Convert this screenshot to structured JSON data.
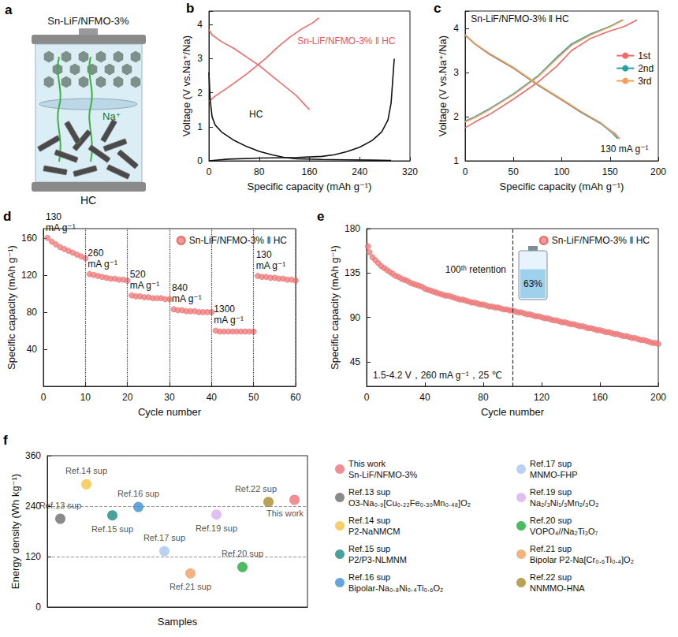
{
  "panel_a": {
    "label": "a",
    "title": "Sn-LiF/NFMO-3%",
    "ion": "Na⁺",
    "anode": "HC"
  },
  "chart_data": [
    {
      "label": "b",
      "type": "line",
      "x_label": "Specific capacity (mAh g⁻¹)",
      "y_label": "Voltage (V vs.Na⁺/Na)",
      "xlim": [
        0,
        320
      ],
      "xticks": [
        0,
        80,
        160,
        240,
        320
      ],
      "ylim": [
        0,
        4.4
      ],
      "yticks": [
        0,
        1,
        2,
        3,
        4
      ],
      "grid": false,
      "annotations": [
        {
          "text": "Sn-LiF/NFMO-3% ‖ HC",
          "color": "#e8555a"
        },
        {
          "text": "HC",
          "color": "#111111"
        }
      ],
      "series": [
        {
          "color": "#f06a6a",
          "x": [
            0,
            10,
            30,
            60,
            90,
            110,
            130,
            150,
            165,
            175
          ],
          "values": [
            1.75,
            1.9,
            2.15,
            2.55,
            3.0,
            3.35,
            3.65,
            3.9,
            4.05,
            4.2
          ]
        },
        {
          "color": "#f06a6a",
          "x": [
            0,
            5,
            20,
            40,
            60,
            80,
            100,
            120,
            140,
            150,
            160
          ],
          "values": [
            3.85,
            3.7,
            3.5,
            3.3,
            3.05,
            2.8,
            2.5,
            2.2,
            1.9,
            1.7,
            1.5
          ]
        },
        {
          "color": "#111111",
          "x": [
            0,
            2,
            5,
            10,
            20,
            40,
            60,
            80,
            100,
            120,
            140,
            180,
            220,
            260,
            290
          ],
          "values": [
            2.6,
            1.8,
            1.3,
            1.05,
            0.85,
            0.6,
            0.42,
            0.28,
            0.18,
            0.1,
            0.06,
            0.04,
            0.03,
            0.02,
            0.01
          ]
        },
        {
          "color": "#111111",
          "x": [
            0,
            30,
            80,
            140,
            180,
            200,
            220,
            240,
            260,
            275,
            285,
            290,
            295
          ],
          "values": [
            0.0,
            0.05,
            0.08,
            0.1,
            0.13,
            0.18,
            0.27,
            0.4,
            0.6,
            0.85,
            1.2,
            1.7,
            3.0
          ]
        }
      ]
    },
    {
      "label": "c",
      "type": "line",
      "x_label": "Specific capacity (mAh g⁻¹)",
      "y_label": "Voltage (V vs.Na⁺/Na)",
      "xlim": [
        0,
        200
      ],
      "xticks": [
        0,
        50,
        100,
        150,
        200
      ],
      "ylim": [
        1,
        4.4
      ],
      "yticks": [
        1,
        2,
        3,
        4
      ],
      "grid": false,
      "legend": "right",
      "annotations": [
        {
          "text": "Sn-LiF/NFMO-3% ‖ HC",
          "color": "#111111"
        },
        {
          "text": "130 mA g⁻¹",
          "color": "#111111"
        }
      ],
      "series": [
        {
          "name": "1st",
          "color": "#f06a6a",
          "x": [
            0,
            10,
            25,
            50,
            75,
            95,
            110,
            130,
            150,
            165,
            178,
            null,
            0,
            10,
            25,
            50,
            75,
            100,
            120,
            140,
            155,
            160
          ],
          "values": [
            1.75,
            1.88,
            2.05,
            2.4,
            2.78,
            3.15,
            3.5,
            3.78,
            3.95,
            4.05,
            4.2,
            null,
            3.85,
            3.65,
            3.42,
            3.1,
            2.72,
            2.38,
            2.1,
            1.85,
            1.62,
            1.5
          ]
        },
        {
          "name": "2nd",
          "color": "#2aa0a0",
          "x": [
            0,
            10,
            25,
            50,
            75,
            95,
            110,
            130,
            150,
            163,
            null,
            0,
            10,
            25,
            50,
            75,
            100,
            120,
            140,
            153,
            158
          ],
          "values": [
            1.9,
            2.0,
            2.18,
            2.52,
            2.92,
            3.35,
            3.65,
            3.88,
            4.05,
            4.2,
            null,
            3.86,
            3.66,
            3.43,
            3.11,
            2.73,
            2.39,
            2.11,
            1.86,
            1.62,
            1.5
          ]
        },
        {
          "name": "3rd",
          "color": "#f0a060",
          "x": [
            0,
            10,
            25,
            50,
            75,
            95,
            110,
            130,
            150,
            164,
            null,
            0,
            10,
            25,
            50,
            75,
            100,
            120,
            140,
            155,
            160
          ],
          "values": [
            1.88,
            1.98,
            2.16,
            2.5,
            2.9,
            3.32,
            3.62,
            3.86,
            4.04,
            4.2,
            null,
            3.86,
            3.66,
            3.44,
            3.12,
            2.74,
            2.4,
            2.12,
            1.87,
            1.6,
            1.5
          ]
        }
      ]
    },
    {
      "label": "d",
      "type": "scatter",
      "x_label": "Cycle number",
      "y_label": "Specific capacity (mAh g⁻¹)",
      "xlim": [
        0,
        60
      ],
      "xticks": [
        0,
        10,
        20,
        30,
        40,
        50,
        60
      ],
      "ylim": [
        0,
        170
      ],
      "yticks": [
        40,
        80,
        120,
        160
      ],
      "grid": false,
      "legend": "top-right",
      "segments": [
        {
          "label": "130 mA g⁻¹",
          "start": 0,
          "end": 10
        },
        {
          "label": "260 mA g⁻¹",
          "start": 10,
          "end": 20
        },
        {
          "label": "520 mA g⁻¹",
          "start": 20,
          "end": 30
        },
        {
          "label": "840 mA g⁻¹",
          "start": 30,
          "end": 40
        },
        {
          "label": "1300 mA g⁻¹",
          "start": 40,
          "end": 50
        },
        {
          "label": "130 mA g⁻¹",
          "start": 50,
          "end": 60
        }
      ],
      "series": [
        {
          "name": "Sn-LiF/NFMO-3% ‖ HC",
          "color": "#f08080",
          "marker": "circle",
          "x": [
            1,
            2,
            3,
            4,
            5,
            6,
            7,
            8,
            9,
            10,
            11,
            12,
            13,
            14,
            15,
            16,
            17,
            18,
            19,
            20,
            21,
            22,
            23,
            24,
            25,
            26,
            27,
            28,
            29,
            30,
            31,
            32,
            33,
            34,
            35,
            36,
            37,
            38,
            39,
            40,
            41,
            42,
            43,
            44,
            45,
            46,
            47,
            48,
            49,
            50,
            51,
            52,
            53,
            54,
            55,
            56,
            57,
            58,
            59,
            60
          ],
          "values": [
            160,
            156,
            153,
            150,
            148,
            146,
            144,
            142,
            140,
            138,
            121,
            120,
            119,
            118,
            117,
            116,
            116,
            115,
            115,
            114,
            98,
            97,
            97,
            96,
            96,
            95,
            95,
            95,
            94,
            94,
            83,
            82,
            82,
            81,
            81,
            81,
            80,
            80,
            80,
            80,
            60,
            59,
            59,
            59,
            59,
            59,
            59,
            59,
            59,
            59,
            119,
            118,
            118,
            117,
            117,
            116,
            116,
            115,
            115,
            114
          ]
        }
      ]
    },
    {
      "label": "e",
      "type": "scatter",
      "x_label": "Cycle number",
      "y_label": "Specific capacity (mAh g⁻¹)",
      "xlim": [
        0,
        200
      ],
      "xticks": [
        0,
        40,
        80,
        120,
        160,
        200
      ],
      "ylim": [
        20,
        180
      ],
      "yticks": [
        45,
        90,
        135,
        180
      ],
      "grid": false,
      "legend": "top-right",
      "retention_cycle": 100,
      "annotations": [
        {
          "text": "100ᵗʰ retention",
          "color": "#111111"
        },
        {
          "text": "63%",
          "color": "#111111"
        },
        {
          "text": "1.5-4.2 V，260 mA g⁻¹，25 ℃",
          "color": "#111111"
        }
      ],
      "series": [
        {
          "name": "Sn-LiF/NFMO-3% ‖ HC",
          "color": "#f08080",
          "marker": "circle",
          "x": [
            1,
            2,
            4,
            6,
            8,
            10,
            12,
            14,
            16,
            18,
            20,
            22,
            24,
            26,
            28,
            30,
            32,
            34,
            36,
            38,
            40,
            42,
            44,
            46,
            48,
            50,
            52,
            54,
            56,
            58,
            60,
            62,
            64,
            66,
            68,
            70,
            72,
            74,
            76,
            78,
            80,
            82,
            84,
            86,
            88,
            90,
            92,
            94,
            96,
            98,
            100,
            102,
            104,
            106,
            108,
            110,
            112,
            114,
            116,
            118,
            120,
            122,
            124,
            126,
            128,
            130,
            132,
            134,
            136,
            138,
            140,
            142,
            144,
            146,
            148,
            150,
            152,
            154,
            156,
            158,
            160,
            162,
            164,
            166,
            168,
            170,
            172,
            174,
            176,
            178,
            180,
            182,
            184,
            186,
            188,
            190,
            192,
            194,
            196,
            198,
            200
          ],
          "values": [
            162,
            156,
            151,
            148,
            145,
            142,
            140,
            138,
            136,
            134,
            132,
            131,
            129,
            128,
            127,
            125,
            124,
            123,
            122,
            121,
            119,
            118,
            117,
            116,
            115,
            114,
            113,
            112,
            112,
            111,
            110,
            109,
            108,
            108,
            107,
            106,
            105,
            105,
            104,
            103,
            103,
            102,
            101,
            101,
            100,
            100,
            99,
            98,
            98,
            97,
            97,
            96,
            95,
            95,
            94,
            93,
            93,
            92,
            91,
            91,
            90,
            89,
            89,
            88,
            87,
            87,
            86,
            85,
            85,
            84,
            83,
            83,
            82,
            81,
            81,
            80,
            79,
            79,
            78,
            77,
            77,
            76,
            75,
            75,
            74,
            73,
            73,
            72,
            71,
            71,
            70,
            69,
            69,
            68,
            67,
            67,
            66,
            65,
            64,
            64,
            63
          ]
        }
      ]
    },
    {
      "label": "f",
      "type": "scatter",
      "x_label": "Samples",
      "y_label": "Energy density (Wh kg⁻¹)",
      "ylim": [
        0,
        360
      ],
      "yticks": [
        0,
        120,
        240,
        360
      ],
      "grid": true,
      "tick_labels": "y",
      "legend": "right",
      "categories": [
        "Ref.13 sup",
        "Ref.14 sup",
        "Ref.15 sup",
        "Ref.16 sup",
        "Ref.17 sup",
        "Ref.21 sup",
        "Ref.19 sup",
        "Ref.20 sup",
        "Ref.22 sup",
        "This work"
      ],
      "series": [
        {
          "name": "This work",
          "description": "Sn-LiF/NFMO-3%",
          "color": "#f06f78",
          "values": [
            null,
            null,
            null,
            null,
            null,
            null,
            null,
            null,
            null,
            255
          ]
        },
        {
          "name": "Ref.13 sup",
          "description": "O3-Na₀.₉[Cu₀.₂₂Fe₀.₃₀Mn₀.₄₈]O₂",
          "color": "#6d6d6d",
          "values": [
            210,
            null,
            null,
            null,
            null,
            null,
            null,
            null,
            null,
            null
          ]
        },
        {
          "name": "Ref.14 sup",
          "description": "P2-NaNMCM",
          "color": "#f5c242",
          "values": [
            null,
            292,
            null,
            null,
            null,
            null,
            null,
            null,
            null,
            null
          ]
        },
        {
          "name": "Ref.15 sup",
          "description": "P2/P3-NLMNM",
          "color": "#1d8a80",
          "values": [
            null,
            null,
            218,
            null,
            null,
            null,
            null,
            null,
            null,
            null
          ]
        },
        {
          "name": "Ref.16 sup",
          "description": "Bipolar-Na₀.₈Ni₀.₄Ti₀.₆O₂",
          "color": "#3e8fd0",
          "values": [
            null,
            null,
            null,
            238,
            null,
            null,
            null,
            null,
            null,
            null
          ]
        },
        {
          "name": "Ref.17 sup",
          "description": "MNMO-FHP",
          "color": "#a9c5f0",
          "values": [
            null,
            null,
            null,
            null,
            133,
            null,
            null,
            null,
            null,
            null
          ]
        },
        {
          "name": "Ref.19 sup",
          "description": "Na₂/₃Ni₁/₃Mn₂/₃O₂",
          "color": "#d8b0f0",
          "values": [
            null,
            null,
            null,
            null,
            null,
            null,
            220,
            null,
            null,
            null
          ]
        },
        {
          "name": "Ref.20 sup",
          "description": "VOPO₄//Na₂Ti₃O₇",
          "color": "#1faa3a",
          "values": [
            null,
            null,
            null,
            null,
            null,
            null,
            null,
            95,
            null,
            null
          ]
        },
        {
          "name": "Ref.21 sup",
          "description": "Bipolar P2-Na[Cr₀.₆Ti₀.₄]O₂",
          "color": "#f0a060",
          "values": [
            null,
            null,
            null,
            null,
            null,
            80,
            null,
            null,
            null,
            null
          ]
        },
        {
          "name": "Ref.22 sup",
          "description": "NNMMO-HNA",
          "color": "#a88a2a",
          "values": [
            null,
            null,
            null,
            null,
            null,
            null,
            null,
            null,
            250,
            null
          ]
        }
      ]
    }
  ]
}
